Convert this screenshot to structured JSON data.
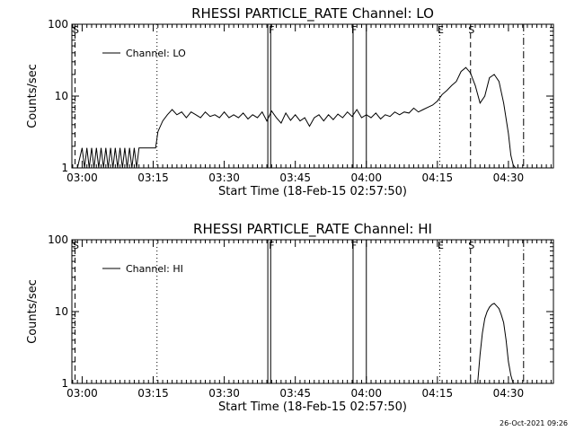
{
  "timestamp": "26-Oct-2021 09:26",
  "chart_data": [
    {
      "type": "line",
      "title": "RHESSI PARTICLE_RATE Channel: LO",
      "xlabel": "Start Time (18-Feb-15 02:57:50)",
      "ylabel": "Counts/sec",
      "yscale": "log",
      "xlim": [
        -2.17,
        99.5
      ],
      "ylim": [
        1,
        100
      ],
      "x_tick_labels": [
        "03:00",
        "03:15",
        "03:30",
        "03:45",
        "04:00",
        "04:15",
        "04:30"
      ],
      "x_tick_values": [
        0,
        15,
        30,
        45,
        60,
        75,
        90
      ],
      "y_tick_labels": [
        "1",
        "10",
        "100"
      ],
      "y_tick_values": [
        1,
        10,
        100
      ],
      "legend": {
        "label": "Channel: LO",
        "position": "top-left"
      },
      "grid": false,
      "markers": [
        {
          "x": -1.5,
          "style": "dashed",
          "label": "S"
        },
        {
          "x": 15.8,
          "style": "dotted",
          "label": ""
        },
        {
          "x": 39.2,
          "style": "solid",
          "label": ""
        },
        {
          "x": 39.8,
          "style": "solid",
          "label": "F"
        },
        {
          "x": 57.2,
          "style": "solid",
          "label": "F"
        },
        {
          "x": 60.0,
          "style": "solid",
          "label": ""
        },
        {
          "x": 75.5,
          "style": "dotted",
          "label": "E"
        },
        {
          "x": 82.0,
          "style": "dashed",
          "label": "S"
        },
        {
          "x": 93.2,
          "style": "dashdot",
          "label": ""
        }
      ],
      "series": [
        {
          "values_x": [
            -1.0,
            0.0,
            0.5,
            1.0,
            1.5,
            2.0,
            2.5,
            3.0,
            3.5,
            4.0,
            4.5,
            5.0,
            5.5,
            6.0,
            6.5,
            7.0,
            7.5,
            8.0,
            8.5,
            9.0,
            9.5,
            10.0,
            10.5,
            11.0,
            11.5,
            12.0,
            13.0,
            14.0,
            15.5,
            16.0,
            17.0,
            18.0,
            19.0,
            20.0,
            21.0,
            22.0,
            23.0,
            24.0,
            25.0,
            26.0,
            27.0,
            28.0,
            29.0,
            30.0,
            31.0,
            32.0,
            33.0,
            34.0,
            35.0,
            36.0,
            37.0,
            38.0,
            39.0,
            40.0,
            41.0,
            42.0,
            43.0,
            44.0,
            45.0,
            46.0,
            47.0,
            48.0,
            49.0,
            50.0,
            51.0,
            52.0,
            53.0,
            54.0,
            55.0,
            56.0,
            57.0,
            58.0,
            59.0,
            60.0,
            61.0,
            62.0,
            63.0,
            64.0,
            65.0,
            66.0,
            67.0,
            68.0,
            69.0,
            70.0,
            71.0,
            72.0,
            73.0,
            74.0,
            75.0,
            76.0,
            77.0,
            78.0,
            79.0,
            80.0,
            81.0,
            82.0,
            82.5,
            83.0,
            84.0,
            85.0,
            86.0,
            87.0,
            88.0,
            89.0,
            90.0,
            90.5,
            91.0,
            91.5
          ],
          "values_y": [
            1.0,
            1.9,
            1.0,
            1.9,
            1.0,
            1.9,
            1.0,
            1.9,
            1.0,
            1.9,
            1.0,
            1.9,
            1.0,
            1.9,
            1.0,
            1.9,
            1.0,
            1.9,
            1.0,
            1.9,
            1.0,
            1.9,
            1.0,
            1.9,
            1.0,
            1.9,
            1.9,
            1.9,
            1.9,
            3.2,
            4.5,
            5.5,
            6.5,
            5.5,
            6.0,
            5.0,
            6.0,
            5.5,
            5.0,
            6.0,
            5.2,
            5.5,
            5.0,
            6.0,
            5.0,
            5.5,
            5.0,
            5.8,
            4.8,
            5.5,
            5.0,
            6.0,
            4.5,
            6.2,
            5.0,
            4.2,
            5.8,
            4.6,
            5.5,
            4.5,
            5.0,
            3.8,
            5.0,
            5.5,
            4.5,
            5.5,
            4.7,
            5.6,
            5.0,
            6.0,
            5.2,
            6.5,
            5.0,
            5.5,
            5.0,
            5.8,
            4.8,
            5.5,
            5.2,
            6.0,
            5.5,
            6.0,
            5.8,
            6.8,
            6.0,
            6.5,
            7.0,
            7.5,
            8.5,
            10.5,
            12.0,
            14.0,
            16.0,
            22.0,
            25.0,
            21.0,
            17.0,
            14.0,
            8.0,
            10.0,
            18.0,
            20.0,
            16.0,
            8.0,
            3.0,
            1.5,
            1.1,
            1.0
          ]
        }
      ]
    },
    {
      "type": "line",
      "title": "RHESSI PARTICLE_RATE Channel: HI",
      "xlabel": "Start Time (18-Feb-15 02:57:50)",
      "ylabel": "Counts/sec",
      "yscale": "log",
      "xlim": [
        -2.17,
        99.5
      ],
      "ylim": [
        1,
        100
      ],
      "x_tick_labels": [
        "03:00",
        "03:15",
        "03:30",
        "03:45",
        "04:00",
        "04:15",
        "04:30"
      ],
      "x_tick_values": [
        0,
        15,
        30,
        45,
        60,
        75,
        90
      ],
      "y_tick_labels": [
        "1",
        "10",
        "100"
      ],
      "y_tick_values": [
        1,
        10,
        100
      ],
      "legend": {
        "label": "Channel: HI",
        "position": "top-left"
      },
      "grid": false,
      "markers": [
        {
          "x": -1.5,
          "style": "dashed",
          "label": "S"
        },
        {
          "x": 15.8,
          "style": "dotted",
          "label": ""
        },
        {
          "x": 39.2,
          "style": "solid",
          "label": ""
        },
        {
          "x": 39.8,
          "style": "solid",
          "label": "F"
        },
        {
          "x": 57.2,
          "style": "solid",
          "label": "F"
        },
        {
          "x": 60.0,
          "style": "solid",
          "label": ""
        },
        {
          "x": 75.5,
          "style": "dotted",
          "label": "E"
        },
        {
          "x": 82.0,
          "style": "dashed",
          "label": "S"
        },
        {
          "x": 93.2,
          "style": "dashdot",
          "label": ""
        }
      ],
      "series": [
        {
          "values_x": [
            83.5,
            84.0,
            84.5,
            85.0,
            85.5,
            86.0,
            86.5,
            87.0,
            87.5,
            88.0,
            88.5,
            89.0,
            89.5,
            90.0,
            90.5,
            91.0
          ],
          "values_y": [
            1.0,
            2.5,
            5.0,
            8.0,
            10.0,
            11.5,
            12.5,
            13.0,
            12.0,
            11.0,
            9.0,
            7.0,
            4.0,
            2.0,
            1.3,
            1.0
          ]
        }
      ]
    }
  ]
}
